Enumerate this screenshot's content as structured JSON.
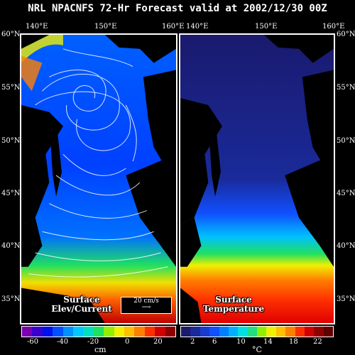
{
  "title": "NRL NPACNFS 72-Hr Forecast valid at 2002/12/30 00Z",
  "lon_labels_left": [
    "140°E",
    "150°E",
    "160°E"
  ],
  "lon_labels_right": [
    "140°E",
    "150°E",
    "160°E"
  ],
  "lat_labels": [
    "60°N",
    "55°N",
    "50°N",
    "45°N",
    "40°N",
    "35°N"
  ],
  "left_panel": {
    "label_line1": "Surface",
    "label_line2": "Elev/Current",
    "vector_scale": "20 cm/s"
  },
  "right_panel": {
    "label_line1": "Surface",
    "label_line2": "Temperature"
  },
  "left_colorbar": {
    "ticks": [
      "-60",
      "-40",
      "-20",
      "0",
      "20"
    ],
    "unit": "cm",
    "colors": [
      "#7a00b0",
      "#3a00d0",
      "#0010f0",
      "#0050ff",
      "#0090ff",
      "#00c8ff",
      "#00e0c0",
      "#20e060",
      "#90f000",
      "#f0f000",
      "#ffc000",
      "#ff8000",
      "#ff3000",
      "#d00000",
      "#900000"
    ]
  },
  "right_colorbar": {
    "ticks": [
      "2",
      "6",
      "10",
      "14",
      "18",
      "22"
    ],
    "unit": "°C",
    "colors": [
      "#1a1a6e",
      "#1a2a9a",
      "#1a3ad0",
      "#1050ff",
      "#0080ff",
      "#00b0ff",
      "#00e0e0",
      "#20e080",
      "#90f000",
      "#f0f000",
      "#ffc000",
      "#ff8000",
      "#ff3000",
      "#d00000",
      "#900000",
      "#600000"
    ]
  }
}
